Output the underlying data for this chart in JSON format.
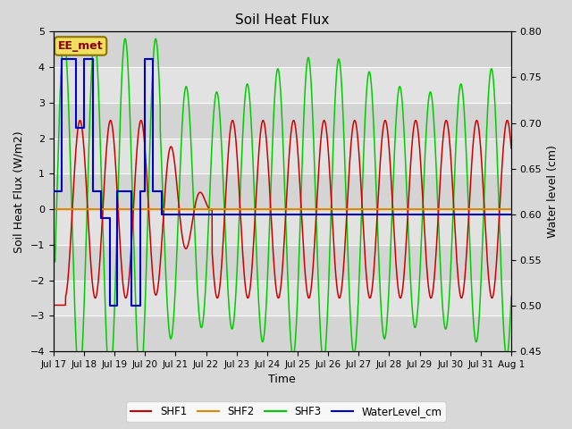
{
  "title": "Soil Heat Flux",
  "ylabel_left": "Soil Heat Flux (W/m2)",
  "ylabel_right": "Water level (cm)",
  "xlabel": "Time",
  "ylim_left": [
    -4.0,
    5.0
  ],
  "ylim_right": [
    0.45,
    0.8
  ],
  "background_color": "#d8d8d8",
  "plot_bg_color": "#e8e8e8",
  "annotation_label": "EE_met",
  "x_tick_labels": [
    "Jul 17",
    "Jul 18",
    "Jul 19",
    "Jul 20",
    "Jul 21",
    "Jul 22",
    "Jul 23",
    "Jul 24",
    "Jul 25",
    "Jul 26",
    "Jul 27",
    "Jul 28",
    "Jul 29",
    "Jul 30",
    "Jul 31",
    "Aug 1"
  ],
  "colors": {
    "SHF1": "#cc0000",
    "SHF2": "#dd8800",
    "SHF3": "#00cc00",
    "WaterLevel": "#0000cc"
  },
  "shf1_phase": 0.62,
  "shf3_phase": 0.1,
  "shf1_amp_main": 2.5,
  "shf3_amp_early": 4.8,
  "shf3_amp_late": 3.8,
  "wl_early": 0.77,
  "wl_mid1": 0.695,
  "wl_mid2": 0.596,
  "wl_mid3": 0.5,
  "wl_late": 0.6,
  "legend_entries": [
    "SHF1",
    "SHF2",
    "SHF3",
    "WaterLevel_cm"
  ]
}
